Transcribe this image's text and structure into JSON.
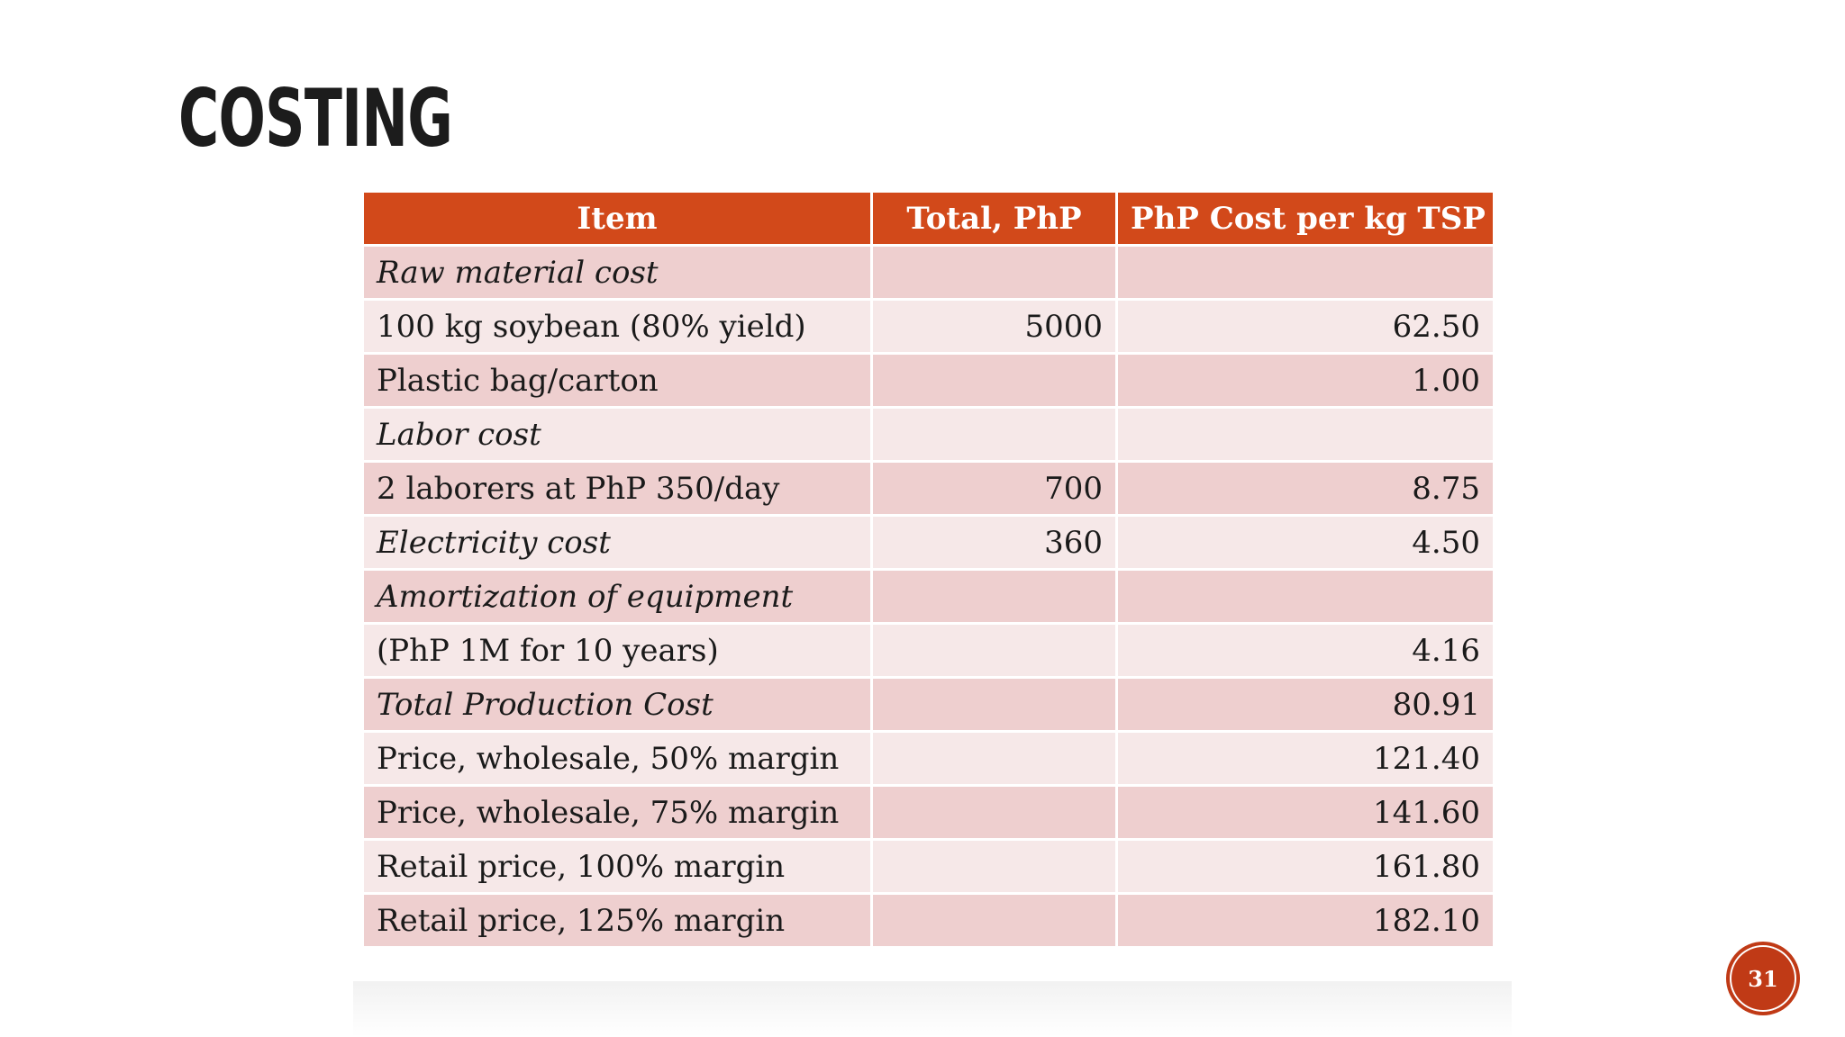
{
  "slide": {
    "title": "COSTING",
    "page_number": "31"
  },
  "table": {
    "headers": [
      "Item",
      "Total, PhP",
      "PhP Cost per kg TSP"
    ],
    "rows": [
      {
        "item": "Raw material cost",
        "total": "",
        "per_kg": "",
        "italic": true
      },
      {
        "item": "100 kg soybean (80% yield)",
        "total": "5000",
        "per_kg": "62.50",
        "italic": false
      },
      {
        "item": "Plastic bag/carton",
        "total": "",
        "per_kg": "1.00",
        "italic": false
      },
      {
        "item": "Labor cost",
        "total": "",
        "per_kg": "",
        "italic": true
      },
      {
        "item": "2 laborers at PhP 350/day",
        "total": "700",
        "per_kg": "8.75",
        "italic": false
      },
      {
        "item": "Electricity cost",
        "total": "360",
        "per_kg": "4.50",
        "italic": true
      },
      {
        "item": "Amortization of equipment",
        "total": "",
        "per_kg": "",
        "italic": true
      },
      {
        "item": "(PhP 1M for 10 years)",
        "total": "",
        "per_kg": "4.16",
        "italic": false
      },
      {
        "item": "Total Production Cost",
        "total": "",
        "per_kg": "80.91",
        "italic": true
      },
      {
        "item": "Price, wholesale, 50% margin",
        "total": "",
        "per_kg": "121.40",
        "italic": false
      },
      {
        "item": "Price, wholesale, 75% margin",
        "total": "",
        "per_kg": "141.60",
        "italic": false
      },
      {
        "item": "Retail price, 100% margin",
        "total": "",
        "per_kg": "161.80",
        "italic": false
      },
      {
        "item": "Retail price, 125% margin",
        "total": "",
        "per_kg": "182.10",
        "italic": false
      }
    ]
  },
  "colors": {
    "header_bg": "#d2491a",
    "row_odd": "#eecfcf",
    "row_even": "#f6e8e8",
    "badge": "#c03a16"
  }
}
